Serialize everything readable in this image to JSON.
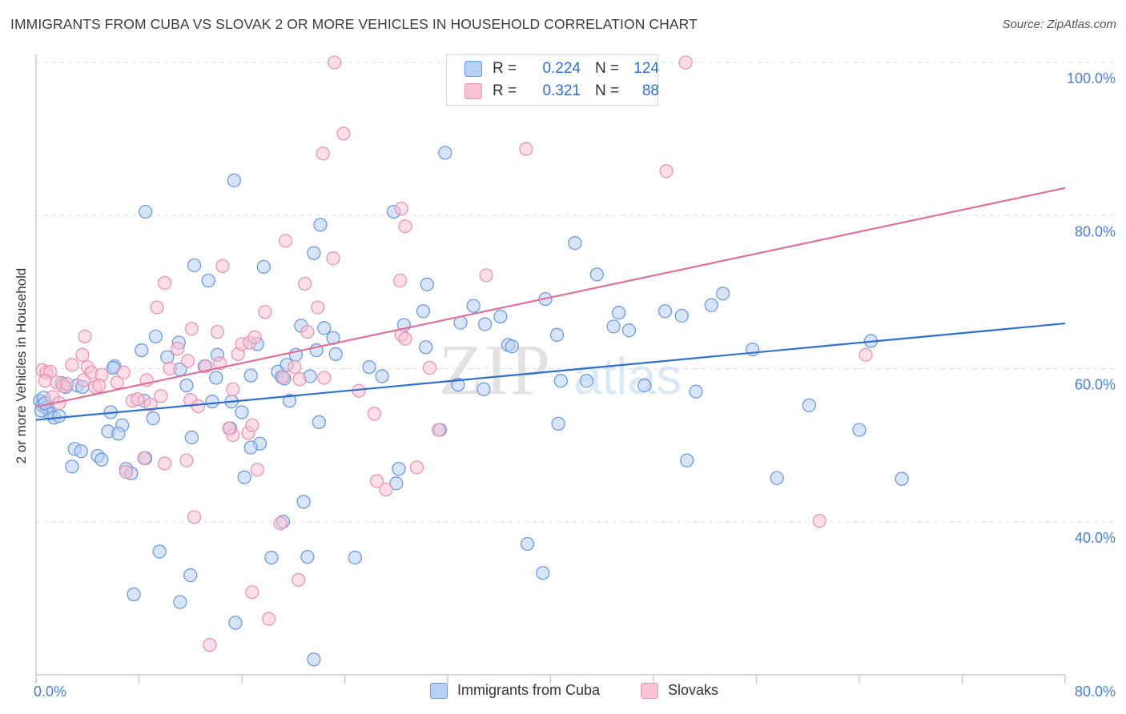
{
  "header": {
    "title": "IMMIGRANTS FROM CUBA VS SLOVAK 2 OR MORE VEHICLES IN HOUSEHOLD CORRELATION CHART",
    "source": "Source: ZipAtlas.com"
  },
  "legend": {
    "rows": [
      {
        "r_label": "R =",
        "r_value": "0.224",
        "n_label": "N =",
        "n_value": "124"
      },
      {
        "r_label": "R =",
        "r_value": "0.321",
        "n_label": "N =",
        "n_value": "88"
      }
    ]
  },
  "bottom_legend": {
    "items": [
      {
        "label": "Immigrants from Cuba"
      },
      {
        "label": "Slovaks"
      }
    ]
  },
  "watermark": {
    "text_a": "ZIP",
    "text_b": "atlas"
  },
  "colors": {
    "blue_fill": "#b8d0f2",
    "blue_stroke": "#6d9be0",
    "blue_line": "#2e6fd0",
    "pink_fill": "#f7c3d3",
    "pink_stroke": "#e996b3",
    "pink_line": "#e0709a",
    "axis_text": "#4a7fd4",
    "grid": "#dddddd"
  },
  "chart_data": {
    "type": "scatter",
    "title": "IMMIGRANTS FROM CUBA VS SLOVAK 2 OR MORE VEHICLES IN HOUSEHOLD CORRELATION CHART",
    "xlabel": "",
    "ylabel": "2 or more Vehicles in Household",
    "xlim": [
      0,
      80
    ],
    "ylim": [
      20,
      100
    ],
    "x_tick_labels": [
      "0.0%",
      "80.0%"
    ],
    "y_ticks": [
      40,
      60,
      80,
      100
    ],
    "y_tick_labels": [
      "40.0%",
      "60.0%",
      "80.0%",
      "100.0%"
    ],
    "grid": true,
    "legend_position": "top-center",
    "series": [
      {
        "name": "Immigrants from Cuba",
        "r": 0.224,
        "n": 124,
        "trend": [
          [
            0,
            53.3
          ],
          [
            80,
            65.9
          ]
        ],
        "points": [
          [
            0.3,
            55.8
          ],
          [
            0.5,
            55.2
          ],
          [
            0.8,
            54.8
          ],
          [
            0.6,
            56.2
          ],
          [
            0.9,
            55.0
          ],
          [
            1.1,
            54.1
          ],
          [
            1.4,
            53.6
          ],
          [
            1.8,
            53.8
          ],
          [
            0.4,
            54.5
          ],
          [
            0.7,
            55.5
          ],
          [
            2.0,
            58.1
          ],
          [
            2.3,
            57.6
          ],
          [
            3.2,
            57.8
          ],
          [
            3.6,
            57.6
          ],
          [
            6.1,
            60.3
          ],
          [
            6.0,
            60.1
          ],
          [
            3.0,
            49.5
          ],
          [
            2.8,
            47.2
          ],
          [
            4.8,
            48.6
          ],
          [
            5.1,
            48.1
          ],
          [
            3.5,
            49.2
          ],
          [
            6.7,
            52.6
          ],
          [
            5.6,
            51.8
          ],
          [
            6.4,
            51.5
          ],
          [
            5.8,
            54.3
          ],
          [
            7.0,
            46.9
          ],
          [
            7.4,
            46.3
          ],
          [
            8.5,
            48.3
          ],
          [
            8.4,
            55.8
          ],
          [
            9.1,
            53.5
          ],
          [
            8.2,
            62.4
          ],
          [
            9.3,
            64.2
          ],
          [
            10.2,
            61.5
          ],
          [
            11.2,
            59.9
          ],
          [
            11.7,
            57.8
          ],
          [
            12.1,
            51.0
          ],
          [
            11.1,
            63.4
          ],
          [
            13.1,
            60.3
          ],
          [
            12.3,
            73.5
          ],
          [
            13.4,
            71.5
          ],
          [
            14.1,
            61.8
          ],
          [
            14.0,
            58.8
          ],
          [
            13.7,
            55.7
          ],
          [
            15.2,
            55.7
          ],
          [
            15.1,
            52.2
          ],
          [
            16.7,
            59.1
          ],
          [
            16.0,
            54.3
          ],
          [
            17.2,
            63.2
          ],
          [
            17.4,
            50.2
          ],
          [
            16.7,
            49.7
          ],
          [
            17.7,
            73.3
          ],
          [
            18.8,
            59.6
          ],
          [
            19.1,
            58.9
          ],
          [
            19.3,
            58.7
          ],
          [
            19.7,
            55.8
          ],
          [
            19.5,
            60.5
          ],
          [
            20.2,
            61.8
          ],
          [
            20.6,
            65.6
          ],
          [
            21.8,
            62.4
          ],
          [
            21.3,
            59.0
          ],
          [
            22.0,
            53.0
          ],
          [
            23.1,
            64.0
          ],
          [
            23.3,
            61.9
          ],
          [
            22.4,
            65.3
          ],
          [
            21.6,
            75.1
          ],
          [
            22.1,
            78.8
          ],
          [
            25.9,
            60.2
          ],
          [
            26.9,
            59.0
          ],
          [
            28.6,
            65.7
          ],
          [
            30.1,
            67.5
          ],
          [
            30.4,
            71.0
          ],
          [
            30.3,
            62.8
          ],
          [
            31.4,
            52.0
          ],
          [
            33.0,
            66.0
          ],
          [
            32.8,
            57.9
          ],
          [
            34.0,
            68.2
          ],
          [
            34.9,
            65.8
          ],
          [
            34.8,
            57.3
          ],
          [
            36.1,
            66.8
          ],
          [
            36.7,
            63.1
          ],
          [
            37.0,
            62.9
          ],
          [
            39.6,
            69.1
          ],
          [
            40.5,
            64.4
          ],
          [
            40.8,
            58.4
          ],
          [
            41.9,
            76.4
          ],
          [
            42.8,
            58.4
          ],
          [
            43.6,
            72.3
          ],
          [
            44.9,
            65.5
          ],
          [
            45.3,
            67.3
          ],
          [
            46.1,
            65.0
          ],
          [
            47.3,
            57.8
          ],
          [
            48.9,
            67.5
          ],
          [
            50.2,
            66.9
          ],
          [
            51.3,
            57.0
          ],
          [
            52.5,
            68.3
          ],
          [
            53.4,
            69.8
          ],
          [
            55.7,
            62.5
          ],
          [
            60.1,
            55.2
          ],
          [
            64.9,
            63.6
          ],
          [
            64.0,
            52.0
          ],
          [
            67.3,
            45.6
          ],
          [
            27.8,
            80.5
          ],
          [
            31.8,
            88.2
          ],
          [
            15.4,
            84.6
          ],
          [
            8.5,
            80.5
          ],
          [
            19.2,
            40.0
          ],
          [
            20.8,
            42.6
          ],
          [
            18.3,
            35.3
          ],
          [
            21.1,
            35.4
          ],
          [
            24.8,
            35.3
          ],
          [
            12.0,
            33.0
          ],
          [
            11.2,
            29.5
          ],
          [
            7.6,
            30.5
          ],
          [
            9.6,
            36.1
          ],
          [
            15.5,
            26.8
          ],
          [
            21.6,
            22.0
          ],
          [
            28.2,
            46.9
          ],
          [
            28.0,
            45.0
          ],
          [
            16.2,
            45.8
          ],
          [
            38.2,
            37.1
          ],
          [
            39.4,
            33.3
          ],
          [
            40.6,
            52.8
          ],
          [
            50.6,
            48.0
          ],
          [
            57.6,
            45.7
          ]
        ]
      },
      {
        "name": "Slovaks",
        "r": 0.321,
        "n": 88,
        "trend": [
          [
            0,
            55.0
          ],
          [
            80,
            83.6
          ]
        ],
        "points": [
          [
            0.5,
            59.8
          ],
          [
            0.8,
            59.5
          ],
          [
            1.1,
            59.6
          ],
          [
            1.6,
            58.2
          ],
          [
            2.1,
            57.7
          ],
          [
            2.4,
            58.0
          ],
          [
            1.3,
            56.3
          ],
          [
            1.8,
            55.5
          ],
          [
            0.7,
            58.4
          ],
          [
            2.8,
            60.5
          ],
          [
            3.6,
            61.8
          ],
          [
            4.0,
            60.2
          ],
          [
            4.3,
            59.5
          ],
          [
            5.1,
            59.2
          ],
          [
            3.7,
            58.5
          ],
          [
            4.6,
            57.6
          ],
          [
            3.8,
            64.2
          ],
          [
            4.9,
            57.8
          ],
          [
            6.3,
            58.2
          ],
          [
            6.8,
            59.5
          ],
          [
            7.5,
            55.8
          ],
          [
            7.9,
            56.0
          ],
          [
            8.6,
            58.5
          ],
          [
            8.9,
            55.3
          ],
          [
            9.7,
            56.4
          ],
          [
            10.4,
            60.0
          ],
          [
            11.0,
            62.6
          ],
          [
            11.8,
            61.0
          ],
          [
            12.0,
            55.9
          ],
          [
            12.6,
            55.1
          ],
          [
            12.1,
            65.2
          ],
          [
            13.2,
            60.3
          ],
          [
            14.3,
            60.7
          ],
          [
            15.3,
            57.3
          ],
          [
            15.7,
            61.9
          ],
          [
            16.0,
            63.2
          ],
          [
            16.6,
            63.4
          ],
          [
            17.0,
            64.1
          ],
          [
            17.8,
            67.4
          ],
          [
            16.5,
            51.6
          ],
          [
            15.3,
            51.3
          ],
          [
            15.0,
            52.2
          ],
          [
            16.8,
            52.6
          ],
          [
            14.1,
            64.8
          ],
          [
            14.5,
            73.4
          ],
          [
            20.1,
            60.2
          ],
          [
            20.5,
            58.6
          ],
          [
            19.2,
            58.9
          ],
          [
            21.1,
            64.8
          ],
          [
            22.4,
            58.8
          ],
          [
            19.4,
            76.7
          ],
          [
            20.9,
            71.1
          ],
          [
            21.9,
            68.0
          ],
          [
            23.1,
            74.4
          ],
          [
            25.1,
            57.1
          ],
          [
            26.3,
            54.1
          ],
          [
            28.4,
            64.4
          ],
          [
            28.7,
            63.9
          ],
          [
            30.6,
            60.1
          ],
          [
            28.7,
            78.6
          ],
          [
            28.4,
            80.9
          ],
          [
            28.3,
            71.5
          ],
          [
            31.3,
            52.0
          ],
          [
            35.0,
            72.2
          ],
          [
            22.3,
            88.1
          ],
          [
            23.9,
            90.7
          ],
          [
            23.2,
            100.0
          ],
          [
            38.1,
            88.7
          ],
          [
            49.0,
            85.8
          ],
          [
            50.5,
            100.0
          ],
          [
            64.5,
            61.8
          ],
          [
            60.9,
            40.1
          ],
          [
            12.3,
            40.6
          ],
          [
            19.0,
            39.8
          ],
          [
            17.2,
            46.8
          ],
          [
            29.6,
            47.1
          ],
          [
            27.2,
            44.2
          ],
          [
            26.5,
            45.3
          ],
          [
            10.0,
            47.6
          ],
          [
            11.7,
            48.0
          ],
          [
            8.4,
            48.3
          ],
          [
            7.0,
            46.5
          ],
          [
            16.8,
            30.8
          ],
          [
            18.1,
            27.3
          ],
          [
            20.4,
            32.4
          ],
          [
            13.5,
            23.9
          ],
          [
            9.4,
            68.0
          ],
          [
            10.0,
            71.2
          ]
        ]
      }
    ]
  }
}
